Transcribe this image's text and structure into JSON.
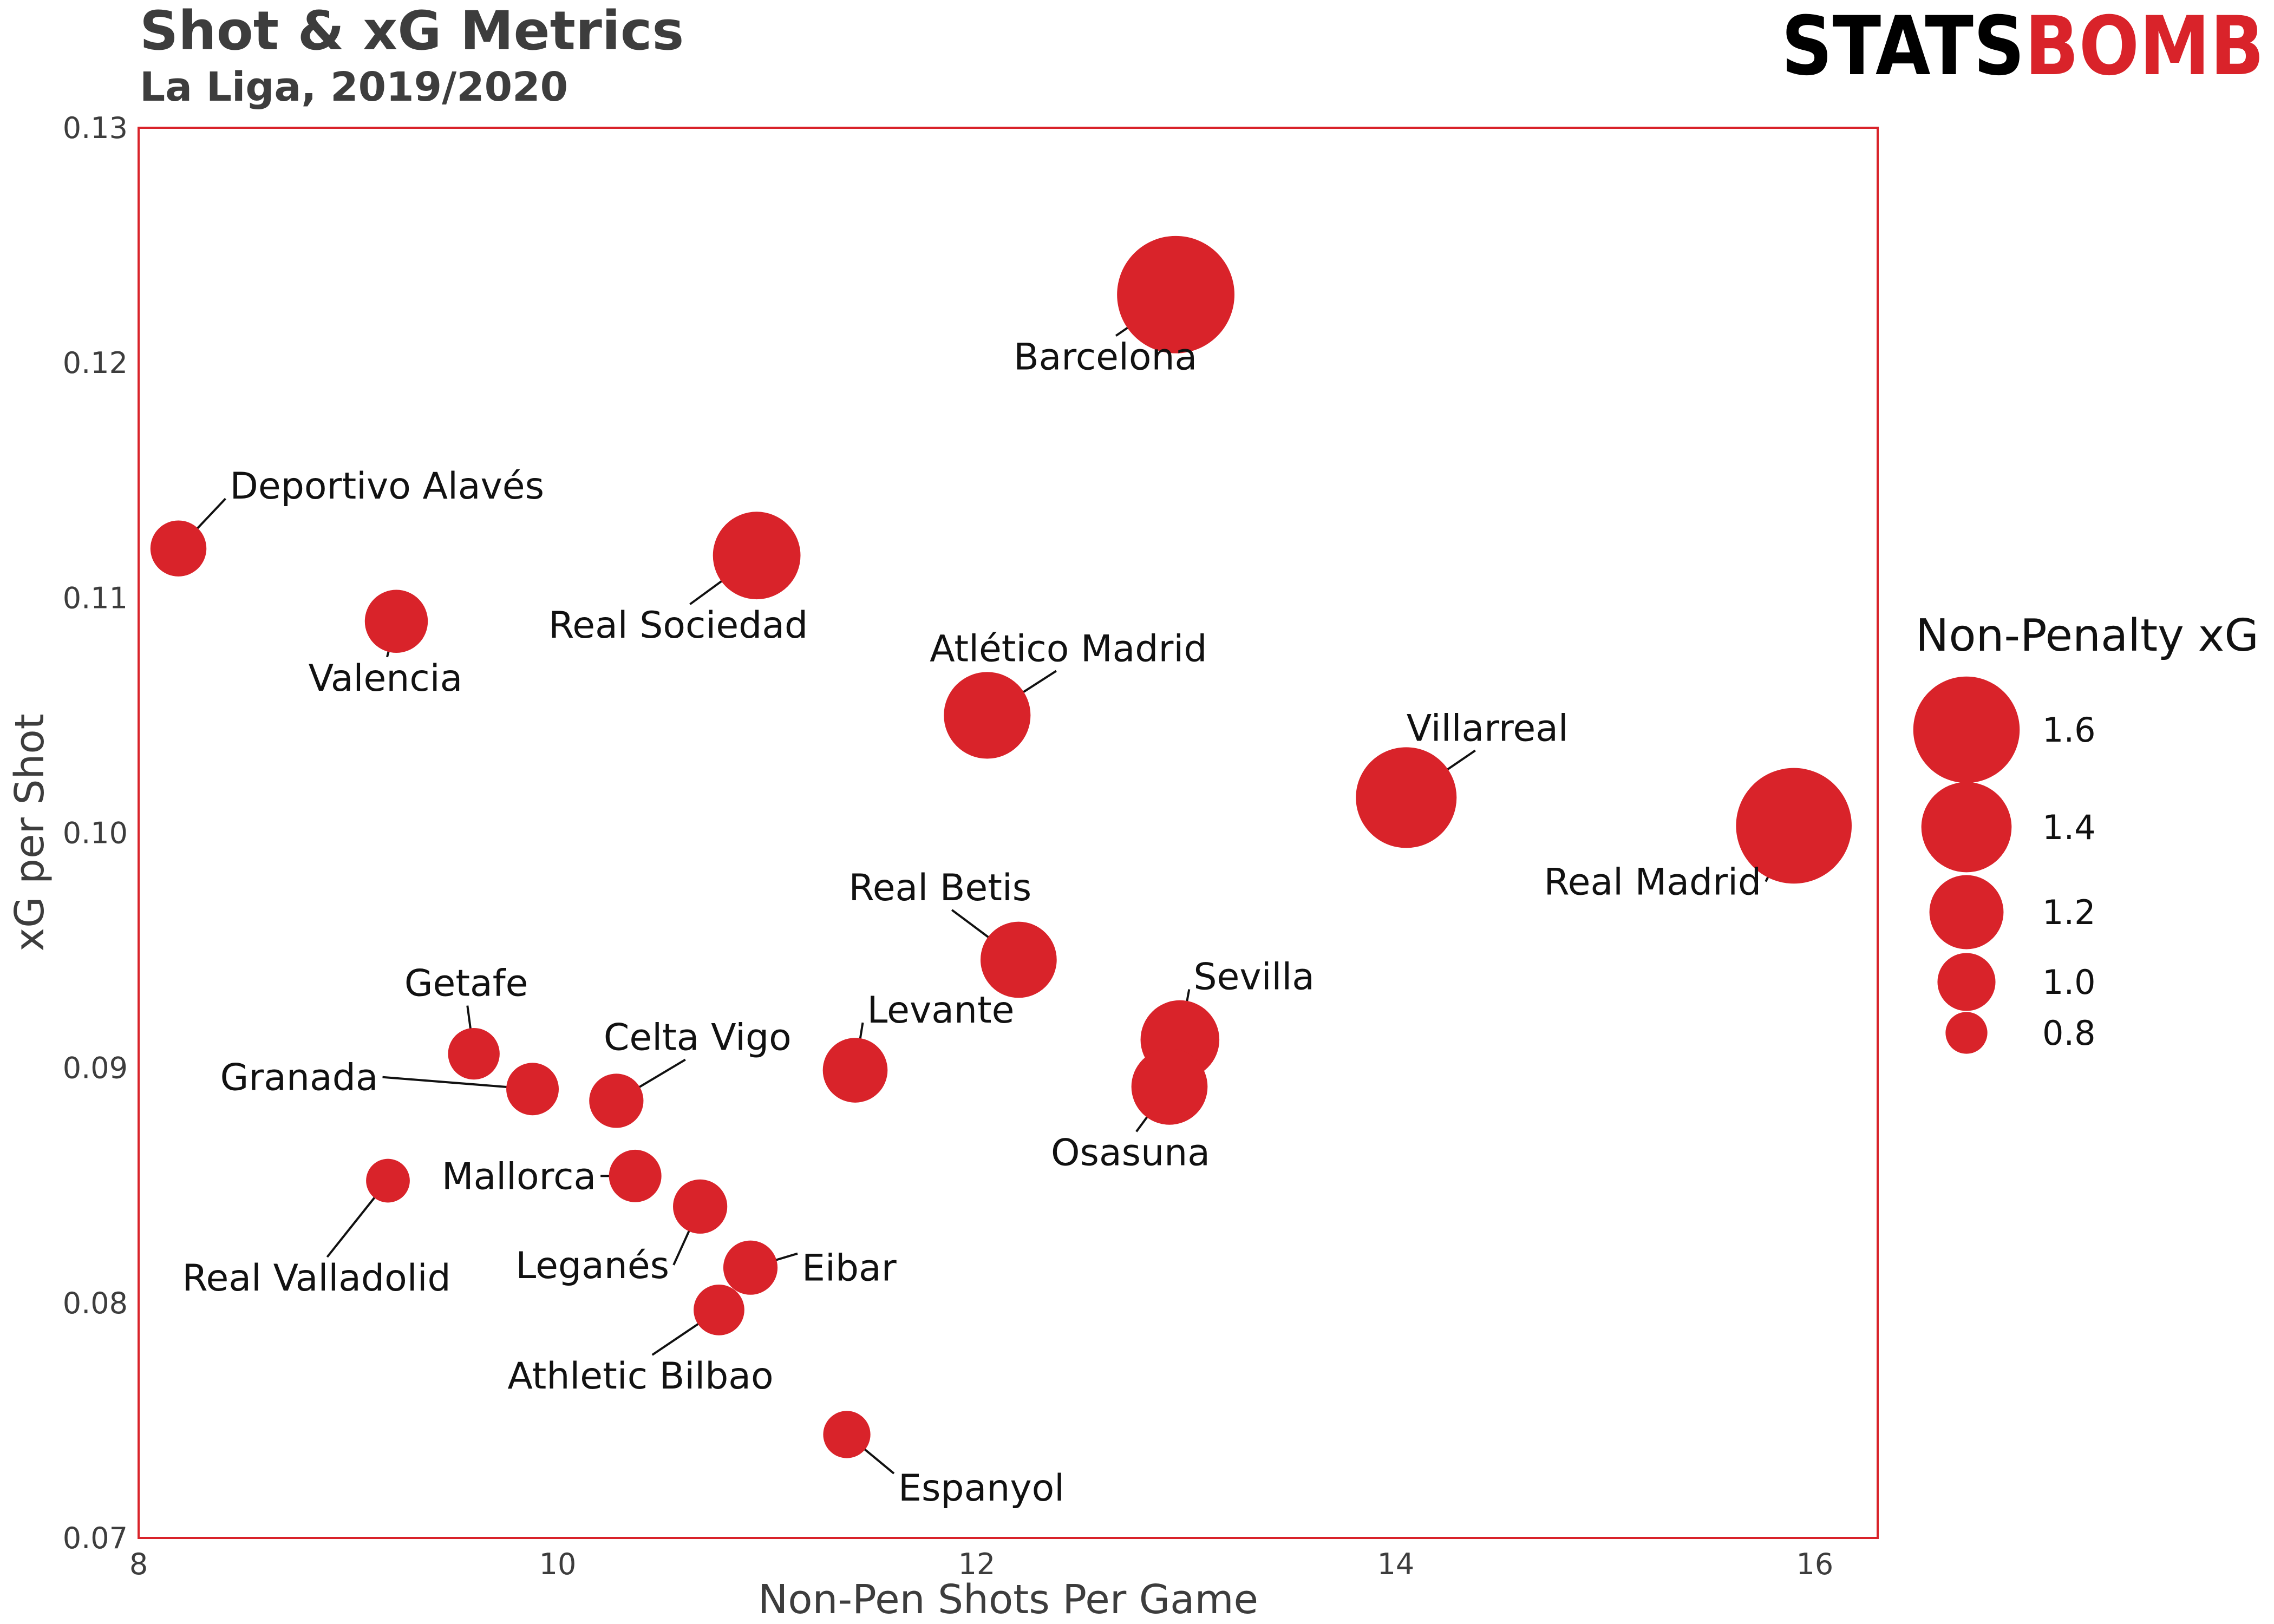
{
  "title": "Shot & xG Metrics",
  "subtitle": "La Liga, 2019/2020",
  "logo": {
    "part1": "STATS",
    "part2": "BOMB",
    "color1": "#000000",
    "color2": "#d9232a"
  },
  "colors": {
    "point": "#d9232a",
    "frame": "#d9232a",
    "text": "#3d3d3d"
  },
  "chart_data": {
    "type": "scatter",
    "title": "Shot & xG Metrics",
    "subtitle": "La Liga, 2019/2020",
    "xlabel": "Non-Pen Shots Per Game",
    "ylabel": "xG per Shot",
    "xlim": [
      8,
      16.3
    ],
    "ylim": [
      0.07,
      0.13
    ],
    "xticks": [
      8,
      10,
      12,
      14,
      16
    ],
    "yticks": [
      0.07,
      0.08,
      0.09,
      0.1,
      0.11,
      0.12,
      0.13
    ],
    "ytick_labels": [
      "0.07",
      "0.08",
      "0.09",
      "0.10",
      "0.11",
      "0.12",
      "0.13"
    ],
    "xtick_labels": [
      "8",
      "10",
      "12",
      "14",
      "16"
    ],
    "grid": false,
    "legend_title": "Non-Penalty xG",
    "legend_placement": "right",
    "legend_sizes": [
      1.6,
      1.4,
      1.2,
      1.0,
      0.8
    ],
    "legend_labels": [
      "1.6",
      "1.4",
      "1.2",
      "1.0",
      "0.8"
    ],
    "points": [
      {
        "label": "Barcelona",
        "x": 12.95,
        "y": 0.1229,
        "size": 1.62
      },
      {
        "label": "Deportivo Alavés",
        "x": 8.19,
        "y": 0.1121,
        "size": 0.92
      },
      {
        "label": "Real Sociedad",
        "x": 10.95,
        "y": 0.1118,
        "size": 1.28
      },
      {
        "label": "Valencia",
        "x": 9.23,
        "y": 0.109,
        "size": 1.0
      },
      {
        "label": "Atlético Madrid",
        "x": 12.05,
        "y": 0.105,
        "size": 1.27
      },
      {
        "label": "Villarreal",
        "x": 14.05,
        "y": 0.1015,
        "size": 1.43
      },
      {
        "label": "Real Madrid",
        "x": 15.9,
        "y": 0.1003,
        "size": 1.6
      },
      {
        "label": "Real Betis",
        "x": 12.2,
        "y": 0.0946,
        "size": 1.15
      },
      {
        "label": "Sevilla",
        "x": 12.97,
        "y": 0.0912,
        "size": 1.18
      },
      {
        "label": "Osasuna",
        "x": 12.92,
        "y": 0.0892,
        "size": 1.15
      },
      {
        "label": "Getafe",
        "x": 9.6,
        "y": 0.0906,
        "size": 0.87
      },
      {
        "label": "Granada",
        "x": 9.88,
        "y": 0.0891,
        "size": 0.88
      },
      {
        "label": "Celta Vigo",
        "x": 10.28,
        "y": 0.0886,
        "size": 0.9
      },
      {
        "label": "Levante",
        "x": 11.42,
        "y": 0.0899,
        "size": 1.02
      },
      {
        "label": "Real Valladolid",
        "x": 9.19,
        "y": 0.0852,
        "size": 0.78
      },
      {
        "label": "Mallorca",
        "x": 10.37,
        "y": 0.0854,
        "size": 0.88
      },
      {
        "label": "Leganés",
        "x": 10.68,
        "y": 0.0841,
        "size": 0.9
      },
      {
        "label": "Eibar",
        "x": 10.92,
        "y": 0.0815,
        "size": 0.9
      },
      {
        "label": "Athletic Bilbao",
        "x": 10.77,
        "y": 0.0797,
        "size": 0.86
      },
      {
        "label": "Espanyol",
        "x": 11.38,
        "y": 0.0744,
        "size": 0.82
      }
    ]
  }
}
